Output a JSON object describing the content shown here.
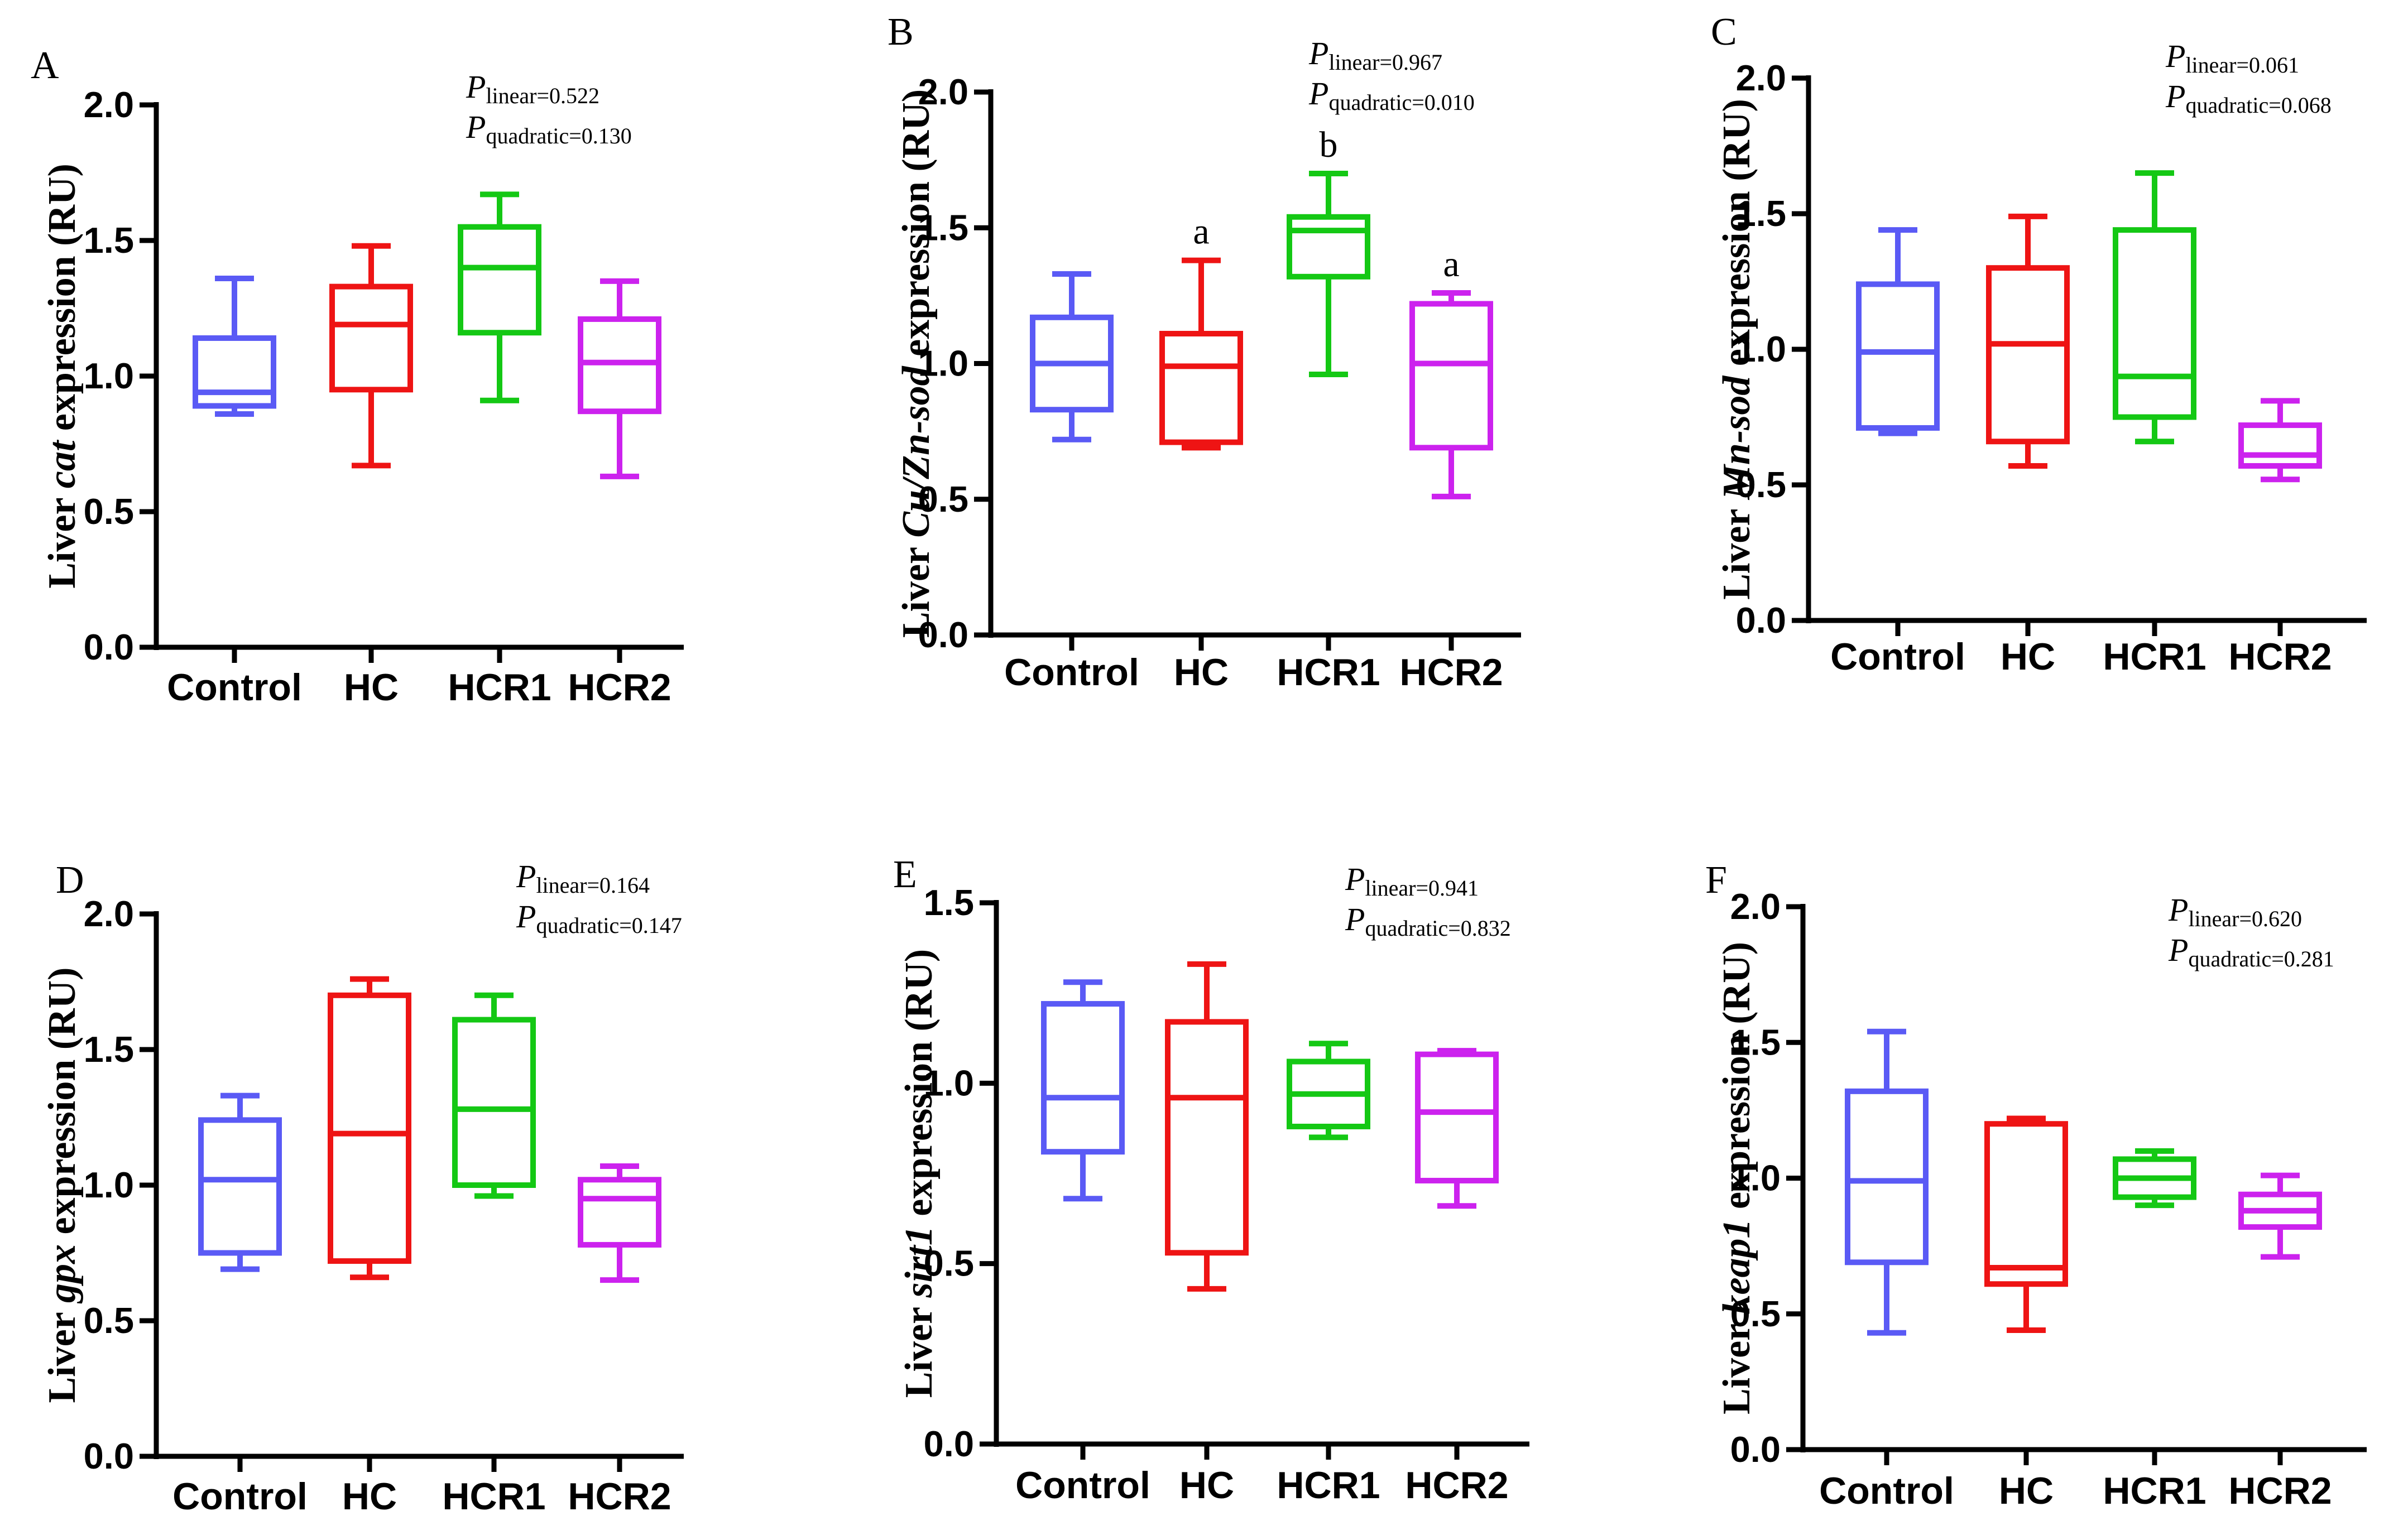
{
  "figure": {
    "colors": {
      "Control": "#5a5af5",
      "HC": "#ee1414",
      "HCR1": "#14c814",
      "HCR2": "#cc22ee"
    }
  },
  "chart_data": [
    {
      "type": "box",
      "panel": "A",
      "ylabel_parts": [
        "Liver ",
        "cat",
        " expression (RU)"
      ],
      "categories": [
        "Control",
        "HC",
        "HCR1",
        "HCR2"
      ],
      "ylim": [
        0,
        2.0
      ],
      "yticks": [
        "0.0",
        "0.5",
        "1.0",
        "1.5",
        "2.0"
      ],
      "p_linear": "linear=0.522",
      "p_quadratic": "quadratic=0.130",
      "boxes": [
        {
          "min": 0.86,
          "q1": 0.89,
          "median": 0.94,
          "q3": 1.14,
          "max": 1.36
        },
        {
          "min": 0.67,
          "q1": 0.95,
          "median": 1.19,
          "q3": 1.33,
          "max": 1.48
        },
        {
          "min": 0.91,
          "q1": 1.16,
          "median": 1.4,
          "q3": 1.55,
          "max": 1.67
        },
        {
          "min": 0.63,
          "q1": 0.87,
          "median": 1.05,
          "q3": 1.21,
          "max": 1.35
        }
      ],
      "sig_labels": [
        "",
        "",
        "",
        ""
      ]
    },
    {
      "type": "box",
      "panel": "B",
      "ylabel_parts": [
        "Liver ",
        "Cu/Zn-sod",
        " expression (RU)"
      ],
      "categories": [
        "Control",
        "HC",
        "HCR1",
        "HCR2"
      ],
      "ylim": [
        0,
        2.0
      ],
      "yticks": [
        "0.0",
        "0.5",
        "1.0",
        "1.5",
        "2.0"
      ],
      "p_linear": "linear=0.967",
      "p_quadratic": "quadratic=0.010",
      "boxes": [
        {
          "min": 0.72,
          "q1": 0.83,
          "median": 1.0,
          "q3": 1.17,
          "max": 1.33
        },
        {
          "min": 0.69,
          "q1": 0.71,
          "median": 0.99,
          "q3": 1.11,
          "max": 1.38
        },
        {
          "min": 0.96,
          "q1": 1.32,
          "median": 1.49,
          "q3": 1.54,
          "max": 1.7
        },
        {
          "min": 0.51,
          "q1": 0.69,
          "median": 1.0,
          "q3": 1.22,
          "max": 1.26
        }
      ],
      "sig_labels": [
        "",
        "a",
        "b",
        "a"
      ]
    },
    {
      "type": "box",
      "panel": "C",
      "ylabel_parts": [
        "Liver ",
        "Mn-sod",
        " expression (RU)"
      ],
      "categories": [
        "Control",
        "HC",
        "HCR1",
        "HCR2"
      ],
      "ylim": [
        0,
        2.0
      ],
      "yticks": [
        "0.0",
        "0.5",
        "1.0",
        "1.5",
        "2.0"
      ],
      "p_linear": "linear=0.061",
      "p_quadratic": "quadratic=0.068",
      "boxes": [
        {
          "min": 0.69,
          "q1": 0.71,
          "median": 0.99,
          "q3": 1.24,
          "max": 1.44
        },
        {
          "min": 0.57,
          "q1": 0.66,
          "median": 1.02,
          "q3": 1.3,
          "max": 1.49
        },
        {
          "min": 0.66,
          "q1": 0.75,
          "median": 0.9,
          "q3": 1.44,
          "max": 1.65
        },
        {
          "min": 0.52,
          "q1": 0.57,
          "median": 0.61,
          "q3": 0.72,
          "max": 0.81
        }
      ],
      "sig_labels": [
        "",
        "",
        "",
        ""
      ]
    },
    {
      "type": "box",
      "panel": "D",
      "ylabel_parts": [
        "Liver ",
        "gpx",
        " expression (RU)"
      ],
      "categories": [
        "Control",
        "HC",
        "HCR1",
        "HCR2"
      ],
      "ylim": [
        0,
        2.0
      ],
      "yticks": [
        "0.0",
        "0.5",
        "1.0",
        "1.5",
        "2.0"
      ],
      "p_linear": "linear=0.164",
      "p_quadratic": "quadratic=0.147",
      "boxes": [
        {
          "min": 0.69,
          "q1": 0.75,
          "median": 1.02,
          "q3": 1.24,
          "max": 1.33
        },
        {
          "min": 0.66,
          "q1": 0.72,
          "median": 1.19,
          "q3": 1.7,
          "max": 1.76
        },
        {
          "min": 0.96,
          "q1": 1.0,
          "median": 1.28,
          "q3": 1.61,
          "max": 1.7
        },
        {
          "min": 0.65,
          "q1": 0.78,
          "median": 0.95,
          "q3": 1.02,
          "max": 1.07
        }
      ],
      "sig_labels": [
        "",
        "",
        "",
        ""
      ]
    },
    {
      "type": "box",
      "panel": "E",
      "ylabel_parts": [
        "Liver ",
        "sirt1",
        " expression (RU)"
      ],
      "categories": [
        "Control",
        "HC",
        "HCR1",
        "HCR2"
      ],
      "ylim": [
        0,
        1.5
      ],
      "yticks": [
        "0.0",
        "0.5",
        "1.0",
        "1.5"
      ],
      "p_linear": "linear=0.941",
      "p_quadratic": "quadratic=0.832",
      "boxes": [
        {
          "min": 0.68,
          "q1": 0.81,
          "median": 0.96,
          "q3": 1.22,
          "max": 1.28
        },
        {
          "min": 0.43,
          "q1": 0.53,
          "median": 0.96,
          "q3": 1.17,
          "max": 1.33
        },
        {
          "min": 0.85,
          "q1": 0.88,
          "median": 0.97,
          "q3": 1.06,
          "max": 1.11
        },
        {
          "min": 0.66,
          "q1": 0.73,
          "median": 0.92,
          "q3": 1.08,
          "max": 1.09
        }
      ],
      "sig_labels": [
        "",
        "",
        "",
        ""
      ]
    },
    {
      "type": "box",
      "panel": "F",
      "ylabel_parts": [
        "Liver ",
        "keap1",
        " expression (RU)"
      ],
      "categories": [
        "Control",
        "HC",
        "HCR1",
        "HCR2"
      ],
      "ylim": [
        0,
        2.0
      ],
      "yticks": [
        "0.0",
        "0.5",
        "1.0",
        "1.5",
        "2.0"
      ],
      "p_linear": "linear=0.620",
      "p_quadratic": "quadratic=0.281",
      "boxes": [
        {
          "min": 0.43,
          "q1": 0.69,
          "median": 0.99,
          "q3": 1.32,
          "max": 1.54
        },
        {
          "min": 0.44,
          "q1": 0.61,
          "median": 0.67,
          "q3": 1.2,
          "max": 1.22
        },
        {
          "min": 0.9,
          "q1": 0.93,
          "median": 1.0,
          "q3": 1.07,
          "max": 1.1
        },
        {
          "min": 0.71,
          "q1": 0.82,
          "median": 0.88,
          "q3": 0.94,
          "max": 1.01
        }
      ],
      "sig_labels": [
        "",
        "",
        "",
        ""
      ]
    }
  ]
}
